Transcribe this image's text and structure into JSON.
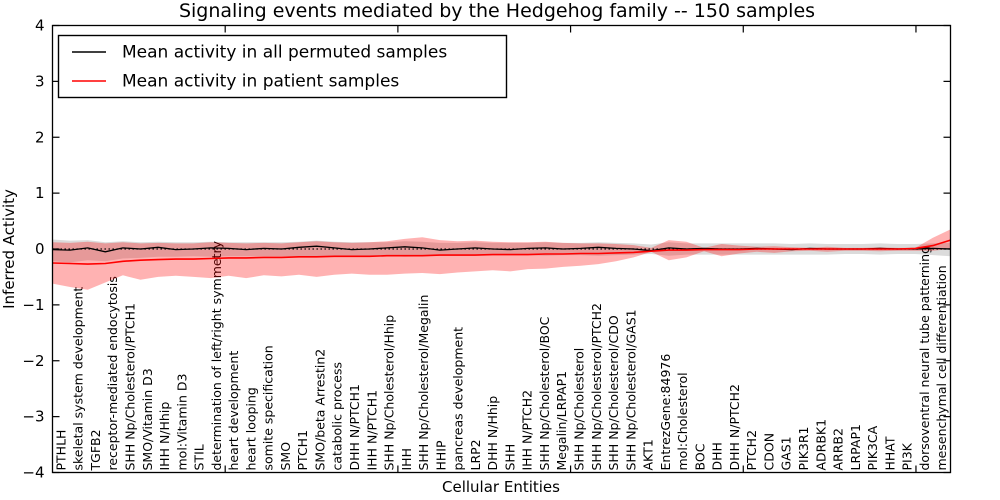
{
  "chart_data": {
    "type": "line",
    "title": "Signaling events mediated by the Hedgehog family -- 150 samples",
    "xlabel": "Cellular Entities",
    "ylabel": "Inferred Activity",
    "ylim": [
      -4,
      4
    ],
    "yticks": [
      -4,
      -3,
      -2,
      -1,
      0,
      1,
      2,
      3,
      4
    ],
    "xtick_boundaries": [
      10,
      20,
      30,
      40,
      50
    ],
    "grid": false,
    "zero_line_style": "dotted",
    "legend_position": "upper left",
    "background_color": "#ffffff",
    "categories": [
      "PTHLH",
      "skeletal system development",
      "TGFB2",
      "receptor-mediated endocytosis",
      "SHH Np/Cholesterol/PTCH1",
      "SMO/Vitamin D3",
      "IHH N/Hhip",
      "mol:Vitamin D3",
      "STIL",
      "determination of left/right symmetry",
      "heart development",
      "heart looping",
      "somite specification",
      "SMO",
      "PTCH1",
      "SMO/beta Arrestin2",
      "catabolic process",
      "DHH N/PTCH1",
      "IHH N/PTCH1",
      "SHH Np/Cholesterol/Hhip",
      "IHH",
      "SHH Np/Cholesterol/Megalin",
      "HHIP",
      "pancreas development",
      "LRP2",
      "DHH N/Hhip",
      "SHH",
      "IHH N/PTCH2",
      "SHH Np/Cholesterol/BOC",
      "Megalin/LRPAP1",
      "SHH Np/Cholesterol",
      "SHH Np/Cholesterol/PTCH2",
      "SHH Np/Cholesterol/CDO",
      "SHH Np/Cholesterol/GAS1",
      "AKT1",
      "EntrezGene:84976",
      "mol:Cholesterol",
      "BOC",
      "DHH",
      "DHH N/PTCH2",
      "PTCH2",
      "CDON",
      "GAS1",
      "PIK3R1",
      "ADRBK1",
      "ARRB2",
      "LRPAP1",
      "PIK3CA",
      "HHAT",
      "PI3K",
      "dorsoventral neural tube patterning",
      "mesenchymal cell differentiation"
    ],
    "series": [
      {
        "name": "Mean activity in all permuted samples",
        "color": "#000000",
        "band_alpha": 0.14,
        "values": [
          -0.01,
          -0.02,
          0.02,
          -0.05,
          0.02,
          0.0,
          0.03,
          -0.01,
          0.0,
          0.02,
          0.01,
          -0.01,
          0.01,
          0.0,
          0.03,
          0.05,
          0.02,
          -0.01,
          0.0,
          0.02,
          0.04,
          0.02,
          -0.02,
          0.0,
          0.02,
          0.0,
          -0.01,
          0.01,
          0.02,
          0.0,
          0.01,
          0.03,
          0.01,
          0.0,
          -0.03,
          0.02,
          0.0,
          0.01,
          0.0,
          0.0,
          0.01,
          0.0,
          -0.01,
          0.01,
          0.0,
          0.0,
          0.0,
          0.01,
          0.0,
          0.0,
          0.01,
          0.0
        ],
        "band_upper": [
          0.17,
          0.15,
          0.16,
          0.12,
          0.14,
          0.12,
          0.13,
          0.12,
          0.12,
          0.13,
          0.12,
          0.12,
          0.12,
          0.12,
          0.13,
          0.15,
          0.13,
          0.12,
          0.12,
          0.12,
          0.14,
          0.13,
          0.11,
          0.11,
          0.12,
          0.11,
          0.11,
          0.11,
          0.12,
          0.11,
          0.11,
          0.12,
          0.11,
          0.1,
          0.08,
          0.12,
          0.1,
          0.1,
          0.1,
          0.1,
          0.1,
          0.1,
          0.09,
          0.1,
          0.09,
          0.09,
          0.09,
          0.1,
          0.09,
          0.09,
          0.1,
          0.11
        ],
        "band_lower": [
          -0.22,
          -0.24,
          -0.2,
          -0.22,
          -0.17,
          -0.16,
          -0.14,
          -0.14,
          -0.13,
          -0.14,
          -0.13,
          -0.13,
          -0.13,
          -0.13,
          -0.13,
          -0.14,
          -0.13,
          -0.12,
          -0.12,
          -0.12,
          -0.14,
          -0.13,
          -0.12,
          -0.12,
          -0.12,
          -0.11,
          -0.11,
          -0.11,
          -0.12,
          -0.11,
          -0.11,
          -0.12,
          -0.11,
          -0.1,
          -0.09,
          -0.12,
          -0.1,
          -0.1,
          -0.1,
          -0.1,
          -0.1,
          -0.1,
          -0.1,
          -0.1,
          -0.1,
          -0.09,
          -0.09,
          -0.1,
          -0.09,
          -0.09,
          -0.11,
          -0.13
        ]
      },
      {
        "name": "Mean activity in patient samples",
        "color": "#ff0000",
        "band_alpha": 0.3,
        "values": [
          -0.25,
          -0.26,
          -0.27,
          -0.26,
          -0.22,
          -0.2,
          -0.19,
          -0.18,
          -0.18,
          -0.17,
          -0.16,
          -0.16,
          -0.15,
          -0.15,
          -0.14,
          -0.14,
          -0.13,
          -0.13,
          -0.13,
          -0.12,
          -0.12,
          -0.12,
          -0.11,
          -0.11,
          -0.11,
          -0.1,
          -0.1,
          -0.1,
          -0.09,
          -0.09,
          -0.08,
          -0.08,
          -0.07,
          -0.06,
          -0.04,
          -0.02,
          -0.02,
          -0.01,
          -0.01,
          -0.01,
          0.0,
          0.0,
          0.0,
          0.0,
          0.0,
          0.0,
          0.0,
          0.0,
          0.0,
          0.01,
          0.06,
          0.16
        ],
        "band_upper": [
          0.12,
          0.11,
          0.13,
          0.1,
          0.12,
          0.1,
          0.11,
          0.1,
          0.1,
          0.12,
          0.11,
          0.1,
          0.11,
          0.1,
          0.12,
          0.14,
          0.12,
          0.11,
          0.12,
          0.14,
          0.18,
          0.21,
          0.16,
          0.14,
          0.15,
          0.13,
          0.12,
          0.12,
          0.13,
          0.11,
          0.1,
          0.1,
          0.09,
          0.07,
          0.02,
          0.16,
          0.13,
          0.02,
          0.09,
          0.06,
          0.04,
          0.05,
          0.03,
          0.02,
          0.04,
          0.02,
          0.02,
          0.03,
          0.02,
          0.02,
          0.2,
          0.35
        ],
        "band_lower": [
          -0.62,
          -0.68,
          -0.73,
          -0.6,
          -0.47,
          -0.55,
          -0.5,
          -0.48,
          -0.5,
          -0.52,
          -0.48,
          -0.52,
          -0.47,
          -0.49,
          -0.46,
          -0.5,
          -0.46,
          -0.44,
          -0.46,
          -0.46,
          -0.44,
          -0.43,
          -0.45,
          -0.42,
          -0.4,
          -0.38,
          -0.4,
          -0.36,
          -0.35,
          -0.32,
          -0.3,
          -0.27,
          -0.22,
          -0.15,
          -0.05,
          -0.2,
          -0.15,
          -0.04,
          -0.13,
          -0.08,
          -0.05,
          -0.07,
          -0.04,
          -0.03,
          -0.05,
          -0.03,
          -0.03,
          -0.04,
          -0.03,
          -0.03,
          -0.03,
          0.0
        ]
      }
    ]
  }
}
